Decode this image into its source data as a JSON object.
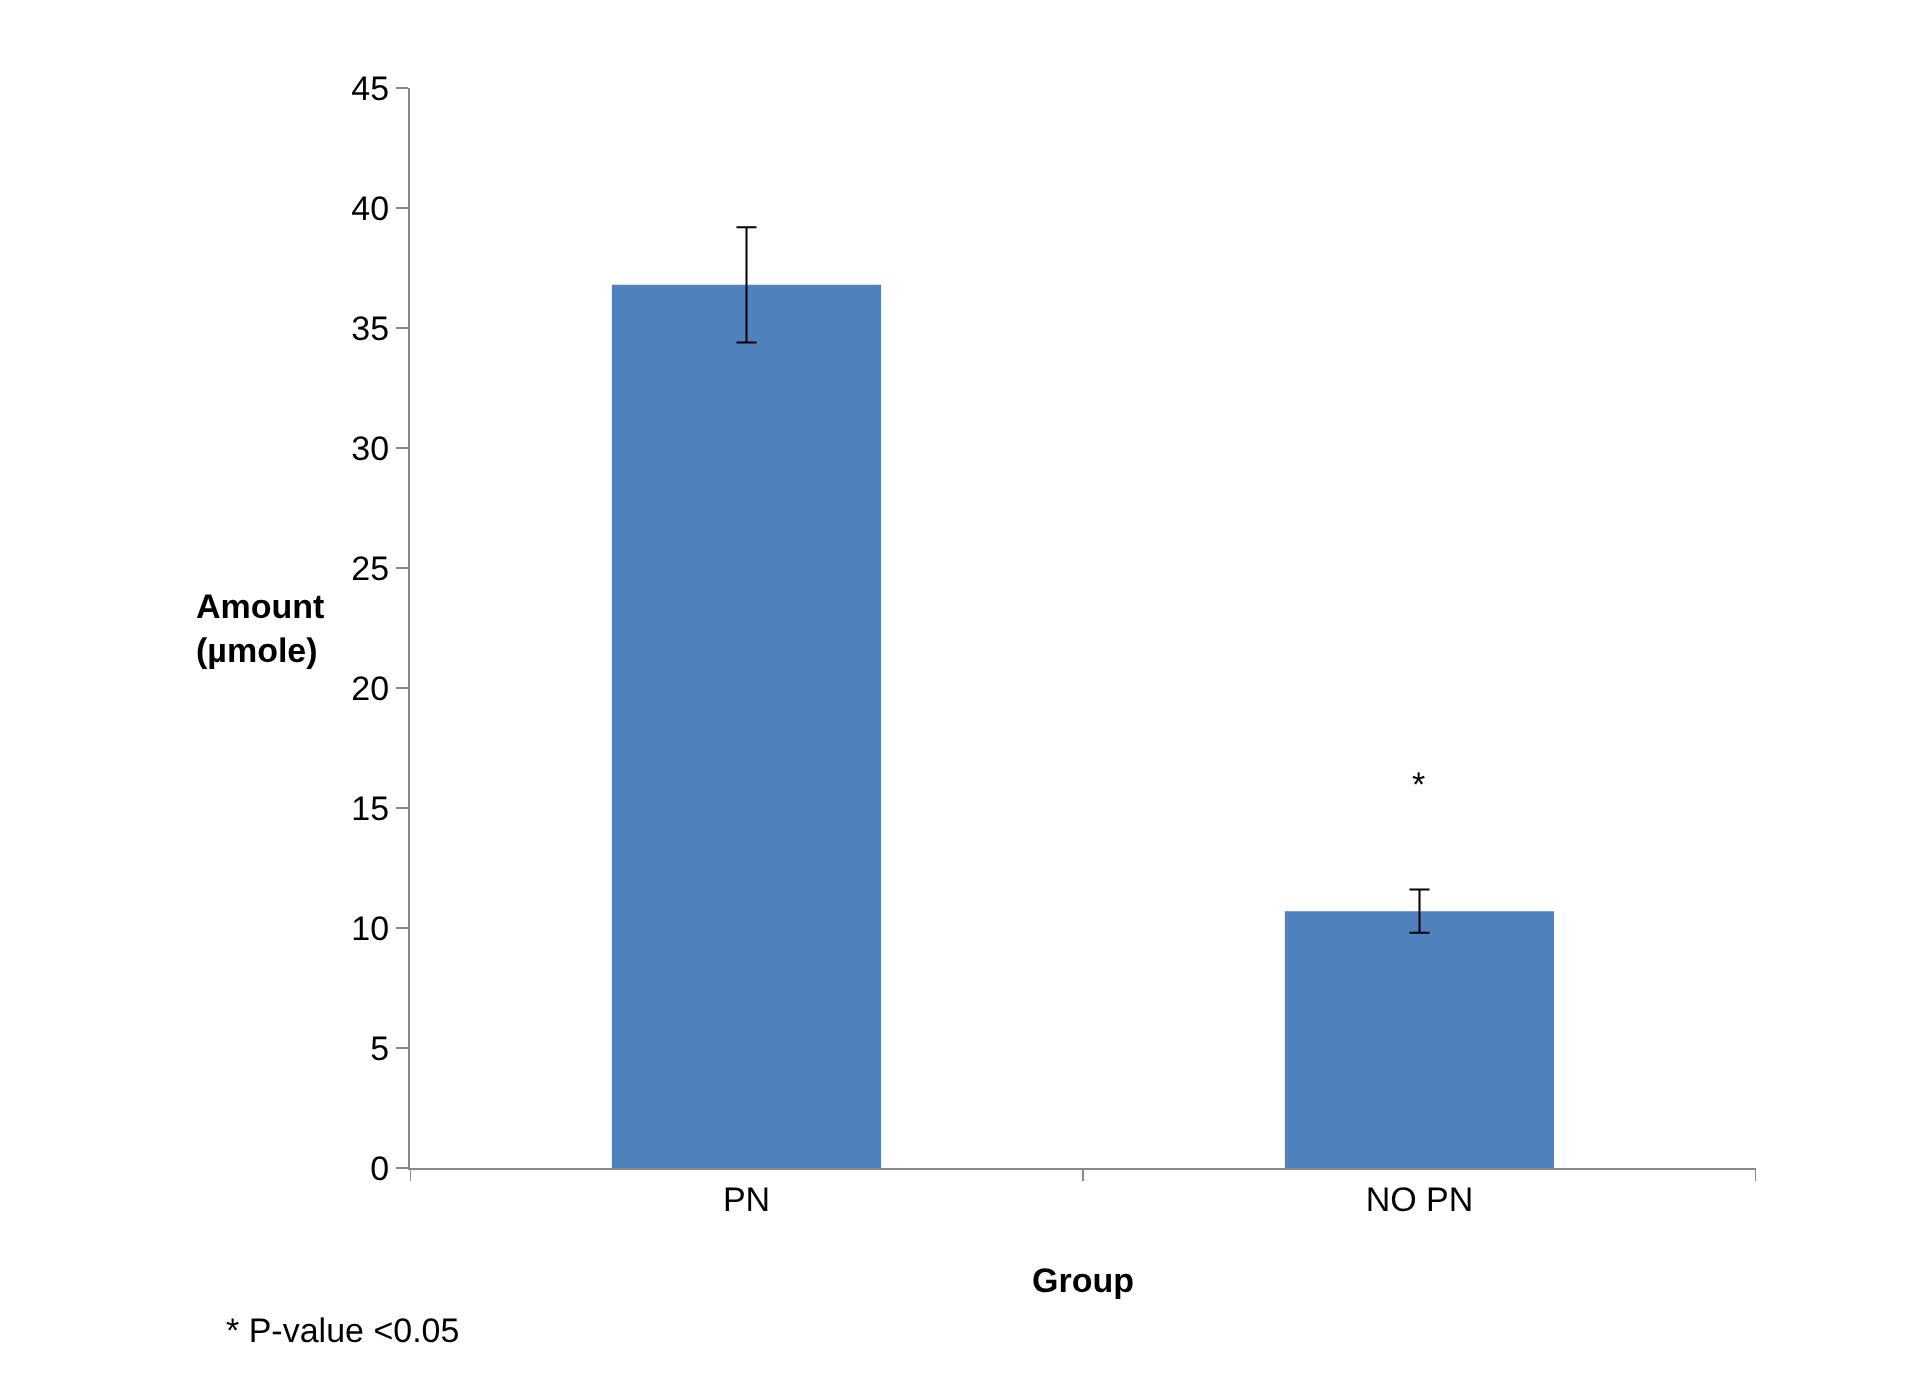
{
  "chart_data": {
    "type": "bar",
    "xlabel": "Group",
    "ylabel": "Amount (µmole)",
    "categories": [
      "PN",
      "NO PN"
    ],
    "values": [
      36.8,
      10.7
    ],
    "errors": [
      2.4,
      0.9
    ],
    "color": "#4f81bd",
    "ylim": [
      0,
      45
    ],
    "yticks": [
      0,
      5,
      10,
      15,
      20,
      25,
      30,
      35,
      40,
      45
    ],
    "grid": false,
    "annotations": [
      "*",
      "* P-value <0.05"
    ]
  }
}
